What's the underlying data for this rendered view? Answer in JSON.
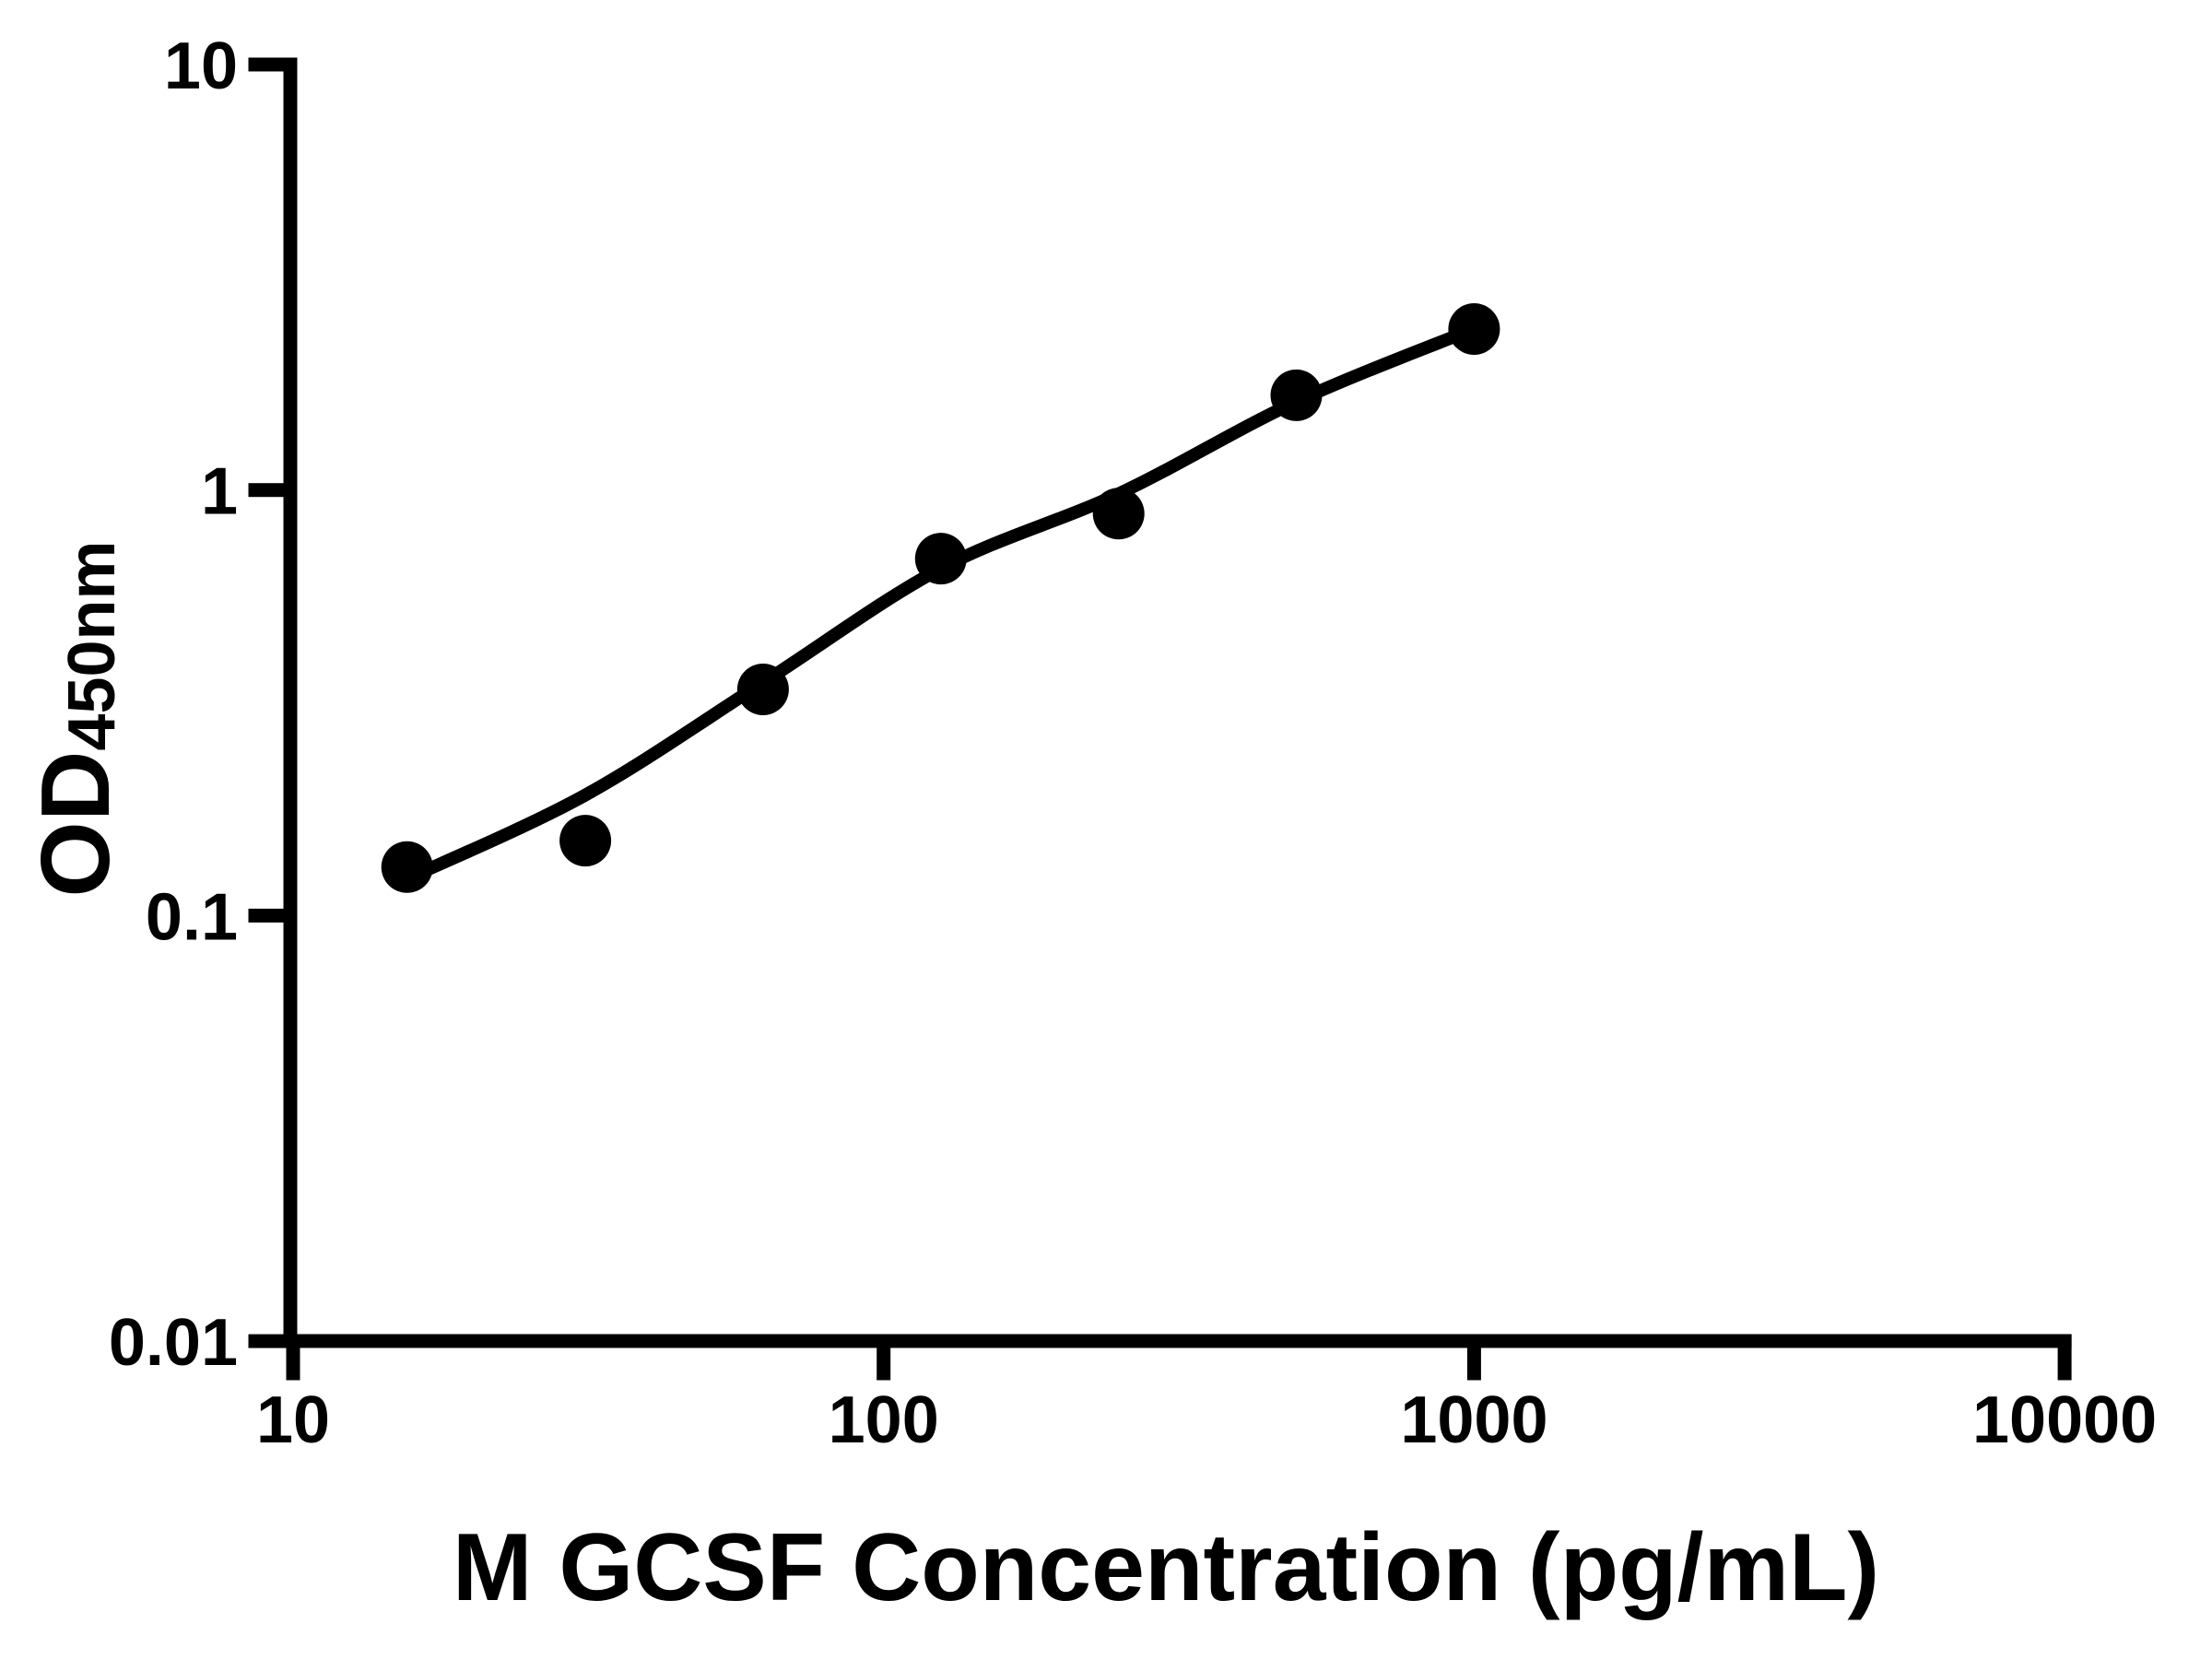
{
  "figure": {
    "background_color": "#ffffff",
    "axis_color": "#000000",
    "marker_color": "#000000",
    "curve_color": "#000000"
  },
  "chart_data": {
    "type": "scatter",
    "xlabel": "M GCSF Concentration (pg/mL)",
    "ylabel_main": "OD",
    "ylabel_subscript": "450nm",
    "x_scale": "log10",
    "y_scale": "log10",
    "xlim": [
      10,
      10000
    ],
    "ylim": [
      0.01,
      10
    ],
    "grid": false,
    "legend": false,
    "x_tick_values": [
      10,
      100,
      1000,
      10000
    ],
    "x_tick_labels": [
      "10",
      "100",
      "1000",
      "10000"
    ],
    "y_tick_values": [
      10,
      1,
      0.1,
      0.01
    ],
    "y_tick_labels": [
      "10",
      "1",
      "0.1",
      "0.01"
    ],
    "series": [
      {
        "marker": "filled-circle",
        "color": "#000000",
        "points": [
          {
            "x": 15.6,
            "y": 0.13
          },
          {
            "x": 31.25,
            "y": 0.15
          },
          {
            "x": 62.5,
            "y": 0.34
          },
          {
            "x": 125,
            "y": 0.69
          },
          {
            "x": 250,
            "y": 0.88
          },
          {
            "x": 500,
            "y": 1.67
          },
          {
            "x": 1000,
            "y": 2.39
          }
        ]
      }
    ],
    "fit_curve": {
      "color": "#000000",
      "points": [
        {
          "x": 15.6,
          "y": 0.122
        },
        {
          "x": 31.25,
          "y": 0.192
        },
        {
          "x": 62.5,
          "y": 0.353
        },
        {
          "x": 125,
          "y": 0.654
        },
        {
          "x": 250,
          "y": 0.98
        },
        {
          "x": 500,
          "y": 1.614
        },
        {
          "x": 1000,
          "y": 2.393
        }
      ]
    }
  }
}
